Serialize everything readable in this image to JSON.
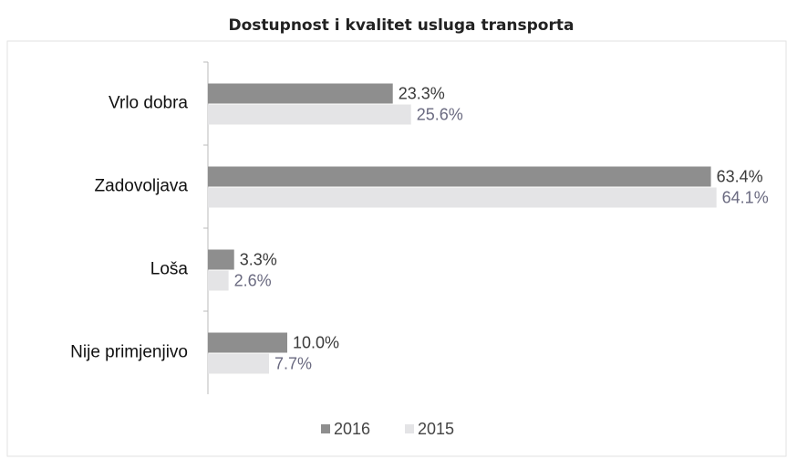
{
  "chart_data": {
    "type": "bar",
    "orientation": "horizontal",
    "title": "Dostupnost i kvalitet usluga transporta",
    "categories": [
      "Vrlo dobra",
      "Zadovoljava",
      "Loša",
      "Nije primjenjivo"
    ],
    "series": [
      {
        "name": "2016",
        "color": "#8e8e8e",
        "values": [
          23.3,
          63.4,
          3.3,
          10.0
        ],
        "value_labels": [
          "23.3%",
          "63.4%",
          "3.3%",
          "10.0%"
        ]
      },
      {
        "name": "2015",
        "color": "#e4e4e6",
        "values": [
          25.6,
          64.1,
          2.6,
          7.7
        ],
        "value_labels": [
          "25.6%",
          "64.1%",
          "2.6%",
          "7.7%"
        ]
      }
    ],
    "xlim": [
      0,
      70
    ],
    "legend": "bottom"
  }
}
